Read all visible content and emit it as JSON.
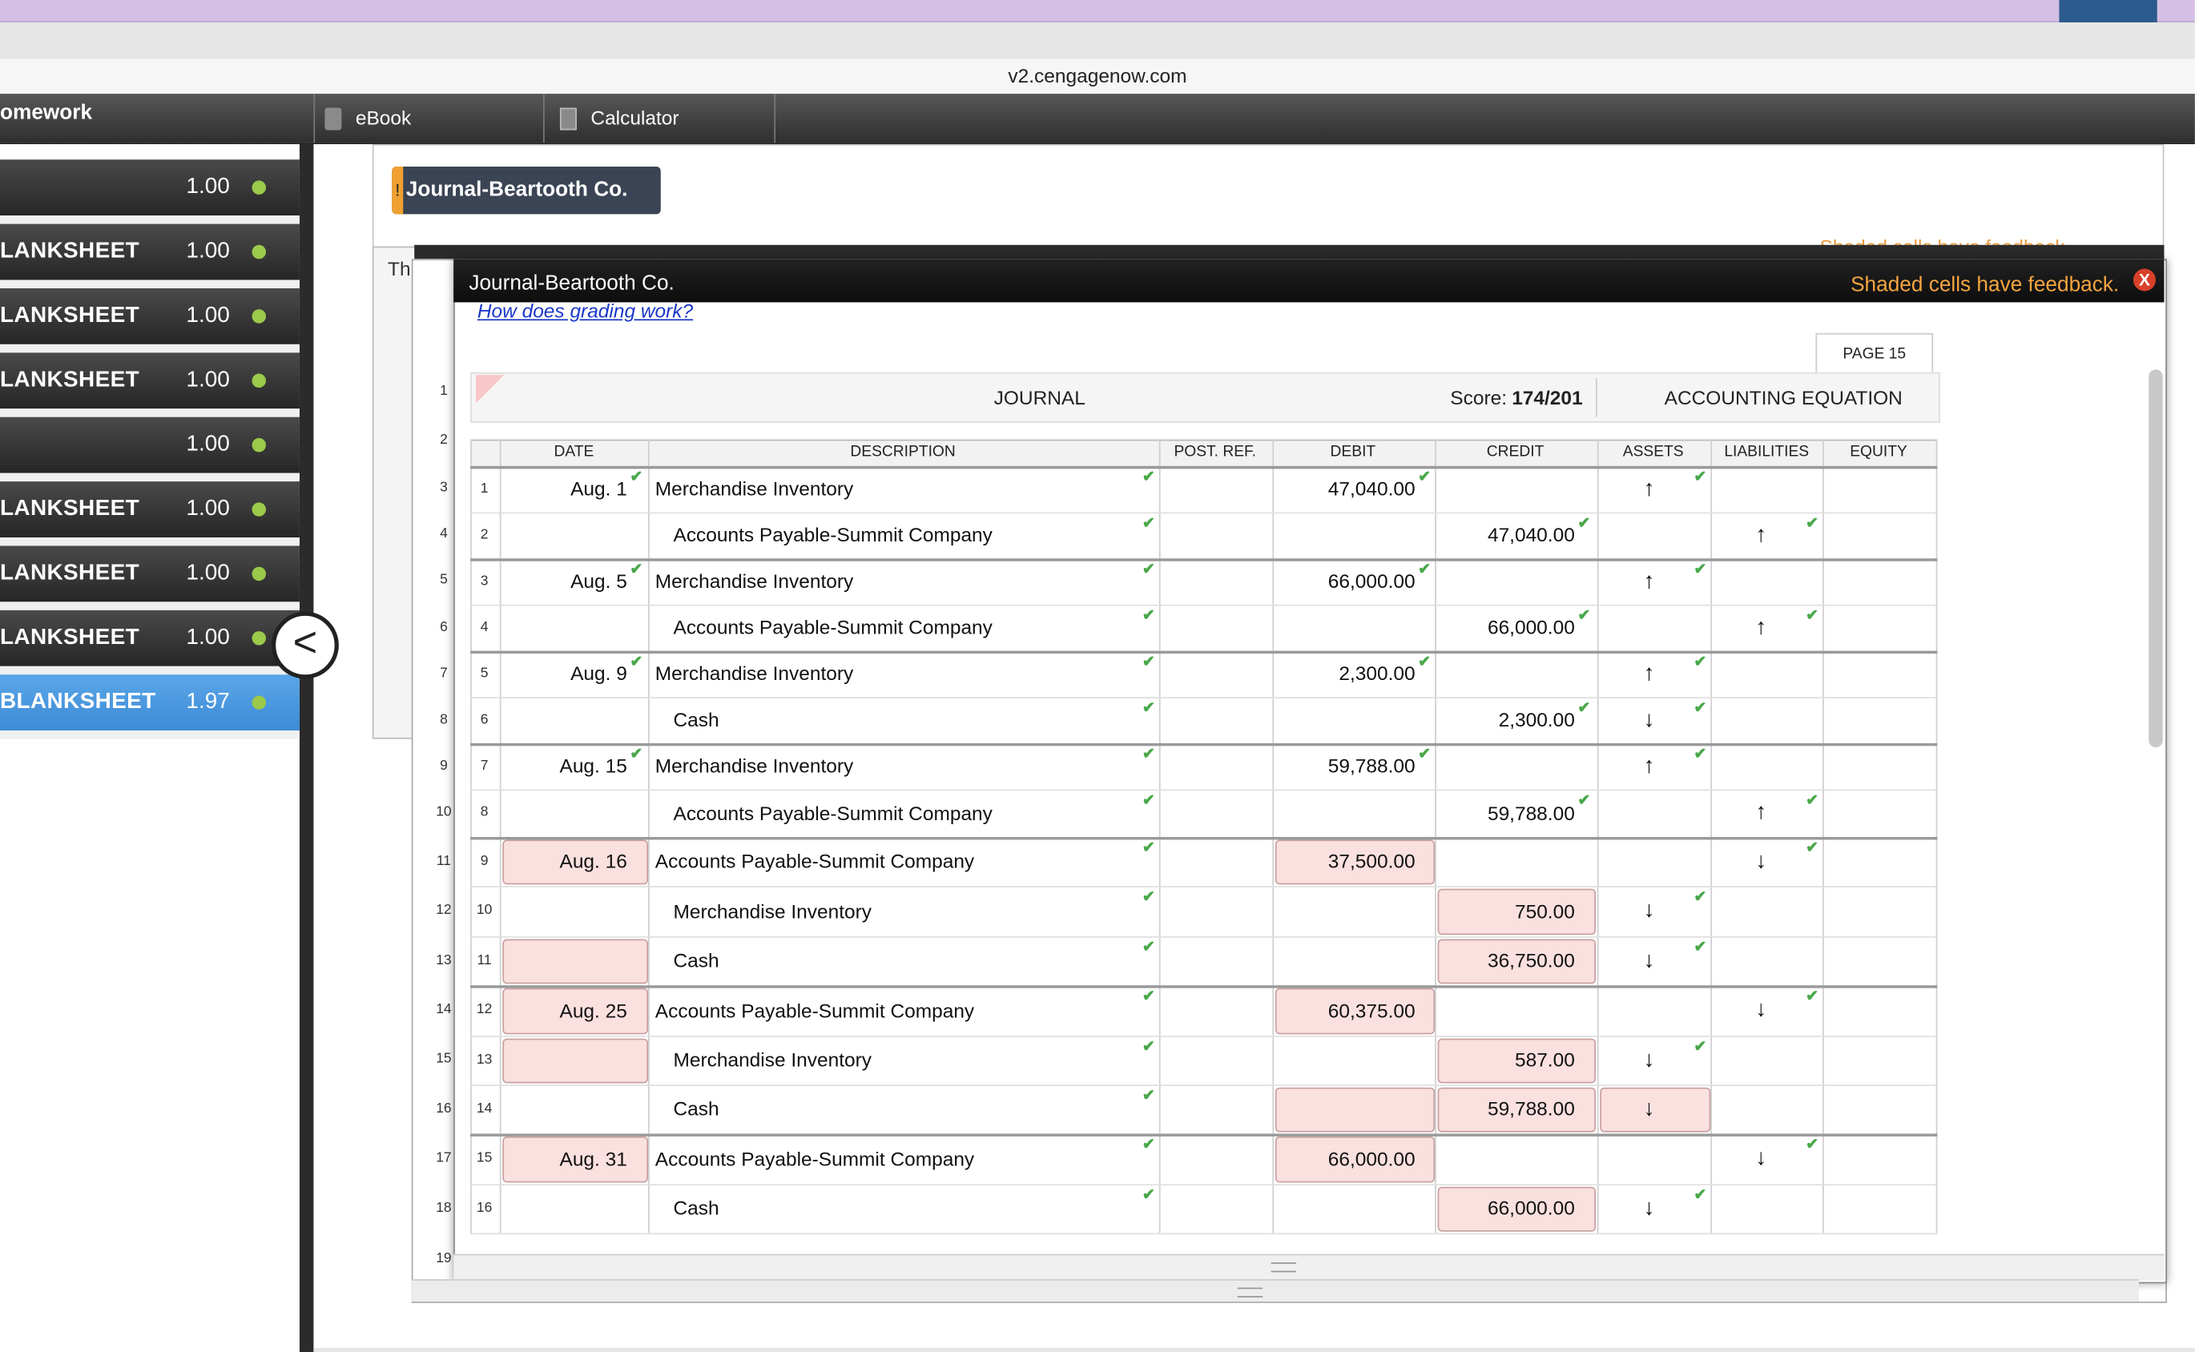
{
  "browser": {
    "url": "v2.cengagenow.com"
  },
  "topnav": {
    "left_title": "omework",
    "items": [
      {
        "label": "eBook",
        "icon": "book-icon"
      },
      {
        "label": "Calculator",
        "icon": "calculator-icon"
      }
    ]
  },
  "sidebar": {
    "items": [
      {
        "label": "",
        "score": "1.00",
        "status": "complete"
      },
      {
        "label": "LANKSHEET",
        "score": "1.00",
        "status": "complete"
      },
      {
        "label": "LANKSHEET",
        "score": "1.00",
        "status": "complete"
      },
      {
        "label": "LANKSHEET",
        "score": "1.00",
        "status": "complete"
      },
      {
        "label": "",
        "score": "1.00",
        "status": "complete"
      },
      {
        "label": "LANKSHEET",
        "score": "1.00",
        "status": "complete"
      },
      {
        "label": "LANKSHEET",
        "score": "1.00",
        "status": "complete"
      },
      {
        "label": "LANKSHEET",
        "score": "1.00",
        "status": "complete"
      },
      {
        "label": "BLANKSHEET",
        "score": "1.97",
        "status": "active"
      }
    ],
    "collapse_glyph": "<"
  },
  "background": {
    "tab_label": "Journal-Beartooth Co.",
    "tab_flag": "!",
    "behind_text": "Th",
    "behind_feedback": "Shaded cells have feedback."
  },
  "modal": {
    "title": "Journal-Beartooth Co.",
    "feedback": "Shaded cells have feedback.",
    "close_label": "X",
    "grading_link": "How does grading work?",
    "page_label": "PAGE 15",
    "journal_title": "JOURNAL",
    "score_label": "Score:",
    "score_value": "174/201",
    "equation_title": "ACCOUNTING EQUATION",
    "columns": {
      "date": "DATE",
      "description": "DESCRIPTION",
      "post_ref": "POST. REF.",
      "debit": "DEBIT",
      "credit": "CREDIT",
      "assets": "ASSETS",
      "liabilities": "LIABILITIES",
      "equity": "EQUITY"
    },
    "sheet_row_numbers": [
      "1",
      "2",
      "3",
      "4",
      "5",
      "6",
      "7",
      "8",
      "9",
      "10",
      "11",
      "12",
      "13",
      "14",
      "15",
      "16",
      "17",
      "18",
      "19"
    ],
    "rows": [
      {
        "line": "1",
        "date": "Aug. 1",
        "description": "Merchandise Inventory",
        "debit": "47,040.00",
        "credit": "",
        "assets": "↑",
        "liabilities": "",
        "equity": ""
      },
      {
        "line": "2",
        "date": "",
        "description": "Accounts Payable-Summit Company",
        "debit": "",
        "credit": "47,040.00",
        "assets": "",
        "liabilities": "↑",
        "equity": ""
      },
      {
        "line": "3",
        "date": "Aug. 5",
        "description": "Merchandise Inventory",
        "debit": "66,000.00",
        "credit": "",
        "assets": "↑",
        "liabilities": "",
        "equity": ""
      },
      {
        "line": "4",
        "date": "",
        "description": "Accounts Payable-Summit Company",
        "debit": "",
        "credit": "66,000.00",
        "assets": "",
        "liabilities": "↑",
        "equity": ""
      },
      {
        "line": "5",
        "date": "Aug. 9",
        "description": "Merchandise Inventory",
        "debit": "2,300.00",
        "credit": "",
        "assets": "↑",
        "liabilities": "",
        "equity": ""
      },
      {
        "line": "6",
        "date": "",
        "description": "Cash",
        "debit": "",
        "credit": "2,300.00",
        "assets": "↓",
        "liabilities": "",
        "equity": ""
      },
      {
        "line": "7",
        "date": "Aug. 15",
        "description": "Merchandise Inventory",
        "debit": "59,788.00",
        "credit": "",
        "assets": "↑",
        "liabilities": "",
        "equity": ""
      },
      {
        "line": "8",
        "date": "",
        "description": "Accounts Payable-Summit Company",
        "debit": "",
        "credit": "59,788.00",
        "assets": "",
        "liabilities": "↑",
        "equity": ""
      },
      {
        "line": "9",
        "date": "Aug. 16",
        "description": "Accounts Payable-Summit Company",
        "debit": "37,500.00",
        "credit": "",
        "assets": "",
        "liabilities": "↓",
        "equity": ""
      },
      {
        "line": "10",
        "date": "",
        "description": "Merchandise Inventory",
        "debit": "",
        "credit": "750.00",
        "assets": "↓",
        "liabilities": "",
        "equity": ""
      },
      {
        "line": "11",
        "date": "",
        "description": "Cash",
        "debit": "",
        "credit": "36,750.00",
        "assets": "↓",
        "liabilities": "",
        "equity": ""
      },
      {
        "line": "12",
        "date": "Aug. 25",
        "description": "Accounts Payable-Summit Company",
        "debit": "60,375.00",
        "credit": "",
        "assets": "",
        "liabilities": "↓",
        "equity": ""
      },
      {
        "line": "13",
        "date": "",
        "description": "Merchandise Inventory",
        "debit": "",
        "credit": "587.00",
        "assets": "↓",
        "liabilities": "",
        "equity": ""
      },
      {
        "line": "14",
        "date": "",
        "description": "Cash",
        "debit": "",
        "credit": "59,788.00",
        "assets": "↓",
        "liabilities": "",
        "equity": ""
      },
      {
        "line": "15",
        "date": "Aug. 31",
        "description": "Accounts Payable-Summit Company",
        "debit": "66,000.00",
        "credit": "",
        "assets": "",
        "liabilities": "↓",
        "equity": ""
      },
      {
        "line": "16",
        "date": "",
        "description": "Cash",
        "debit": "",
        "credit": "66,000.00",
        "assets": "↓",
        "liabilities": "",
        "equity": ""
      }
    ]
  },
  "colors": {
    "feedback_orange": "#f5a540",
    "check_green": "#49a84a",
    "shaded_cell": "#fbe0e0",
    "active_blue": "#4a98de"
  }
}
